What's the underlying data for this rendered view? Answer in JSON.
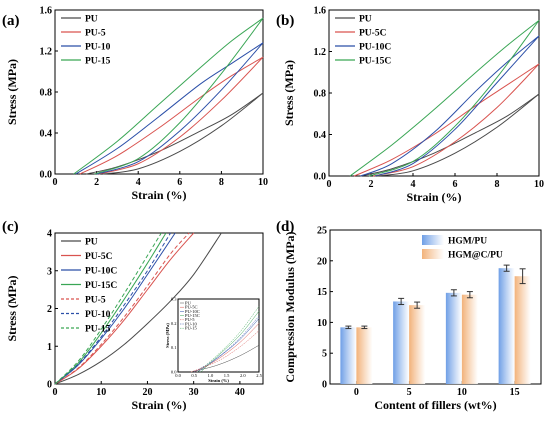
{
  "chart_data": [
    {
      "panel": "(a)",
      "type": "line",
      "xlabel": "Strain (%)",
      "ylabel": "Stress (MPa)",
      "xlim": [
        0,
        10
      ],
      "ylim": [
        0,
        1.6
      ],
      "xticks": [
        0,
        2,
        4,
        6,
        8,
        10
      ],
      "yticks": [
        0.0,
        0.4,
        0.8,
        1.2,
        1.6
      ],
      "legend": "top-left",
      "series": [
        {
          "name": "PU",
          "color": "#4a4a4a",
          "loading": [
            [
              1.5,
              0
            ],
            [
              3,
              0.07
            ],
            [
              5,
              0.22
            ],
            [
              7,
              0.42
            ],
            [
              8.5,
              0.58
            ],
            [
              10,
              0.79
            ]
          ],
          "unloading": [
            [
              10,
              0.79
            ],
            [
              8,
              0.47
            ],
            [
              6,
              0.22
            ],
            [
              4,
              0.05
            ],
            [
              2.3,
              0
            ]
          ]
        },
        {
          "name": "PU-5",
          "color": "#d9534f",
          "loading": [
            [
              1.2,
              0
            ],
            [
              3,
              0.18
            ],
            [
              5,
              0.45
            ],
            [
              7,
              0.75
            ],
            [
              8.5,
              0.96
            ],
            [
              10,
              1.14
            ]
          ],
          "unloading": [
            [
              10,
              1.14
            ],
            [
              8,
              0.72
            ],
            [
              6,
              0.36
            ],
            [
              4,
              0.1
            ],
            [
              2.1,
              0
            ]
          ]
        },
        {
          "name": "PU-10",
          "color": "#2b4fa8",
          "loading": [
            [
              1,
              0
            ],
            [
              3,
              0.25
            ],
            [
              5,
              0.56
            ],
            [
              7,
              0.88
            ],
            [
              8.5,
              1.08
            ],
            [
              10,
              1.28
            ]
          ],
          "unloading": [
            [
              10,
              1.28
            ],
            [
              8,
              0.82
            ],
            [
              6,
              0.42
            ],
            [
              4,
              0.12
            ],
            [
              2,
              0
            ]
          ]
        },
        {
          "name": "PU-15",
          "color": "#3aa655",
          "loading": [
            [
              0.9,
              0
            ],
            [
              3,
              0.32
            ],
            [
              5,
              0.68
            ],
            [
              7,
              1.04
            ],
            [
              8.5,
              1.3
            ],
            [
              10,
              1.52
            ]
          ],
          "unloading": [
            [
              10,
              1.52
            ],
            [
              8,
              0.98
            ],
            [
              6,
              0.5
            ],
            [
              4,
              0.15
            ],
            [
              1.9,
              0
            ]
          ]
        }
      ]
    },
    {
      "panel": "(b)",
      "type": "line",
      "xlabel": "Strain (%)",
      "ylabel": "Stress (MPa)",
      "xlim": [
        0,
        10
      ],
      "ylim": [
        0,
        1.6
      ],
      "xticks": [
        0,
        2,
        4,
        6,
        8,
        10
      ],
      "yticks": [
        0.0,
        0.4,
        0.8,
        1.2,
        1.6
      ],
      "legend": "top-left",
      "series": [
        {
          "name": "PU",
          "color": "#4a4a4a",
          "loading": [
            [
              1.5,
              0
            ],
            [
              3,
              0.07
            ],
            [
              5,
              0.22
            ],
            [
              7,
              0.42
            ],
            [
              8.5,
              0.58
            ],
            [
              10,
              0.79
            ]
          ],
          "unloading": [
            [
              10,
              0.79
            ],
            [
              8,
              0.47
            ],
            [
              6,
              0.22
            ],
            [
              4,
              0.05
            ],
            [
              2.3,
              0
            ]
          ]
        },
        {
          "name": "PU-5C",
          "color": "#d9534f",
          "loading": [
            [
              1.2,
              0
            ],
            [
              3,
              0.16
            ],
            [
              5,
              0.4
            ],
            [
              7,
              0.68
            ],
            [
              8.5,
              0.88
            ],
            [
              10,
              1.08
            ]
          ],
          "unloading": [
            [
              10,
              1.08
            ],
            [
              8,
              0.66
            ],
            [
              6,
              0.33
            ],
            [
              4,
              0.09
            ],
            [
              2.1,
              0
            ]
          ]
        },
        {
          "name": "PU-10C",
          "color": "#2b4fa8",
          "loading": [
            [
              1.5,
              0
            ],
            [
              3,
              0.12
            ],
            [
              5,
              0.42
            ],
            [
              7,
              0.82
            ],
            [
              8.5,
              1.1
            ],
            [
              10,
              1.35
            ]
          ],
          "unloading": [
            [
              10,
              1.35
            ],
            [
              8,
              0.9
            ],
            [
              6,
              0.45
            ],
            [
              4,
              0.12
            ],
            [
              2.2,
              0
            ]
          ]
        },
        {
          "name": "PU-15C",
          "color": "#3aa655",
          "loading": [
            [
              1,
              0
            ],
            [
              3,
              0.3
            ],
            [
              5,
              0.64
            ],
            [
              7,
              1
            ],
            [
              8.5,
              1.26
            ],
            [
              10,
              1.5
            ]
          ],
          "unloading": [
            [
              10,
              1.5
            ],
            [
              8,
              0.95
            ],
            [
              6,
              0.48
            ],
            [
              4,
              0.14
            ],
            [
              1.9,
              0
            ]
          ]
        }
      ]
    },
    {
      "panel": "(c)",
      "type": "line",
      "xlabel": "Strain (%)",
      "ylabel": "Stress (MPa)",
      "xlim": [
        0,
        45
      ],
      "ylim": [
        0,
        4
      ],
      "xticks": [
        0,
        10,
        20,
        30,
        40
      ],
      "yticks": [
        0,
        1,
        2,
        3,
        4
      ],
      "legend": "top-left",
      "series": [
        {
          "name": "PU",
          "color": "#4a4a4a",
          "dashed": false,
          "points": [
            [
              0,
              0
            ],
            [
              5,
              0.25
            ],
            [
              10,
              0.6
            ],
            [
              15,
              1.05
            ],
            [
              20,
              1.6
            ],
            [
              25,
              2.2
            ],
            [
              30,
              2.9
            ],
            [
              36,
              4
            ]
          ]
        },
        {
          "name": "PU-5C",
          "color": "#d9534f",
          "dashed": false,
          "points": [
            [
              0,
              0
            ],
            [
              5,
              0.4
            ],
            [
              10,
              1
            ],
            [
              15,
              1.7
            ],
            [
              20,
              2.5
            ],
            [
              25,
              3.3
            ],
            [
              30,
              4
            ]
          ]
        },
        {
          "name": "PU-10C",
          "color": "#2b4fa8",
          "dashed": false,
          "points": [
            [
              0,
              0
            ],
            [
              5,
              0.5
            ],
            [
              10,
              1.2
            ],
            [
              15,
              2.0
            ],
            [
              20,
              2.9
            ],
            [
              26,
              4
            ]
          ]
        },
        {
          "name": "PU-15C",
          "color": "#3aa655",
          "dashed": false,
          "points": [
            [
              0,
              0
            ],
            [
              5,
              0.55
            ],
            [
              10,
              1.35
            ],
            [
              15,
              2.25
            ],
            [
              20,
              3.2
            ],
            [
              24,
              4
            ]
          ]
        },
        {
          "name": "PU-5",
          "color": "#d9534f",
          "dashed": true,
          "points": [
            [
              0,
              0
            ],
            [
              5,
              0.42
            ],
            [
              10,
              1.05
            ],
            [
              15,
              1.78
            ],
            [
              20,
              2.6
            ],
            [
              25,
              3.45
            ],
            [
              29,
              4
            ]
          ]
        },
        {
          "name": "PU-10",
          "color": "#2b4fa8",
          "dashed": true,
          "points": [
            [
              0,
              0
            ],
            [
              5,
              0.52
            ],
            [
              10,
              1.25
            ],
            [
              15,
              2.1
            ],
            [
              20,
              3.0
            ],
            [
              25,
              4
            ]
          ]
        },
        {
          "name": "PU-15",
          "color": "#3aa655",
          "dashed": true,
          "points": [
            [
              0,
              0
            ],
            [
              5,
              0.6
            ],
            [
              10,
              1.45
            ],
            [
              15,
              2.4
            ],
            [
              20,
              3.4
            ],
            [
              23,
              4
            ]
          ]
        }
      ],
      "inset": {
        "xlabel": "Strain (%)",
        "ylabel": "Stress (MPa)",
        "xlim": [
          0,
          2.5
        ],
        "ylim": [
          0,
          0.3
        ],
        "xticks": [
          "0.0",
          "0.5",
          "1.0",
          "1.5",
          "2.0",
          "2.5"
        ],
        "yticks": [
          "0.0",
          "0.1",
          "0.2",
          "0.3"
        ],
        "legend": [
          "PU",
          "PU-5C",
          "PU-10C",
          "PU-15C",
          "PU-5",
          "PU-10",
          "PU-15"
        ]
      }
    },
    {
      "panel": "(d)",
      "type": "bar",
      "xlabel": "Content of fillers (wt%)",
      "ylabel": "Compression Modulus (MPa)",
      "categories": [
        "0",
        "5",
        "10",
        "15"
      ],
      "ylim": [
        0,
        25
      ],
      "yticks": [
        0,
        5,
        10,
        15,
        20,
        25
      ],
      "legend": "top-right",
      "series": [
        {
          "name": "HGM/PU",
          "color": "#6f9fe6",
          "values": [
            9.2,
            13.4,
            14.8,
            18.8
          ],
          "errors": [
            0.2,
            0.5,
            0.5,
            0.5
          ]
        },
        {
          "name": "HGM@C/PU",
          "color": "#f2b27a",
          "values": [
            9.2,
            12.8,
            14.5,
            17.5
          ],
          "errors": [
            0.2,
            0.5,
            0.5,
            1.2
          ]
        }
      ]
    }
  ]
}
